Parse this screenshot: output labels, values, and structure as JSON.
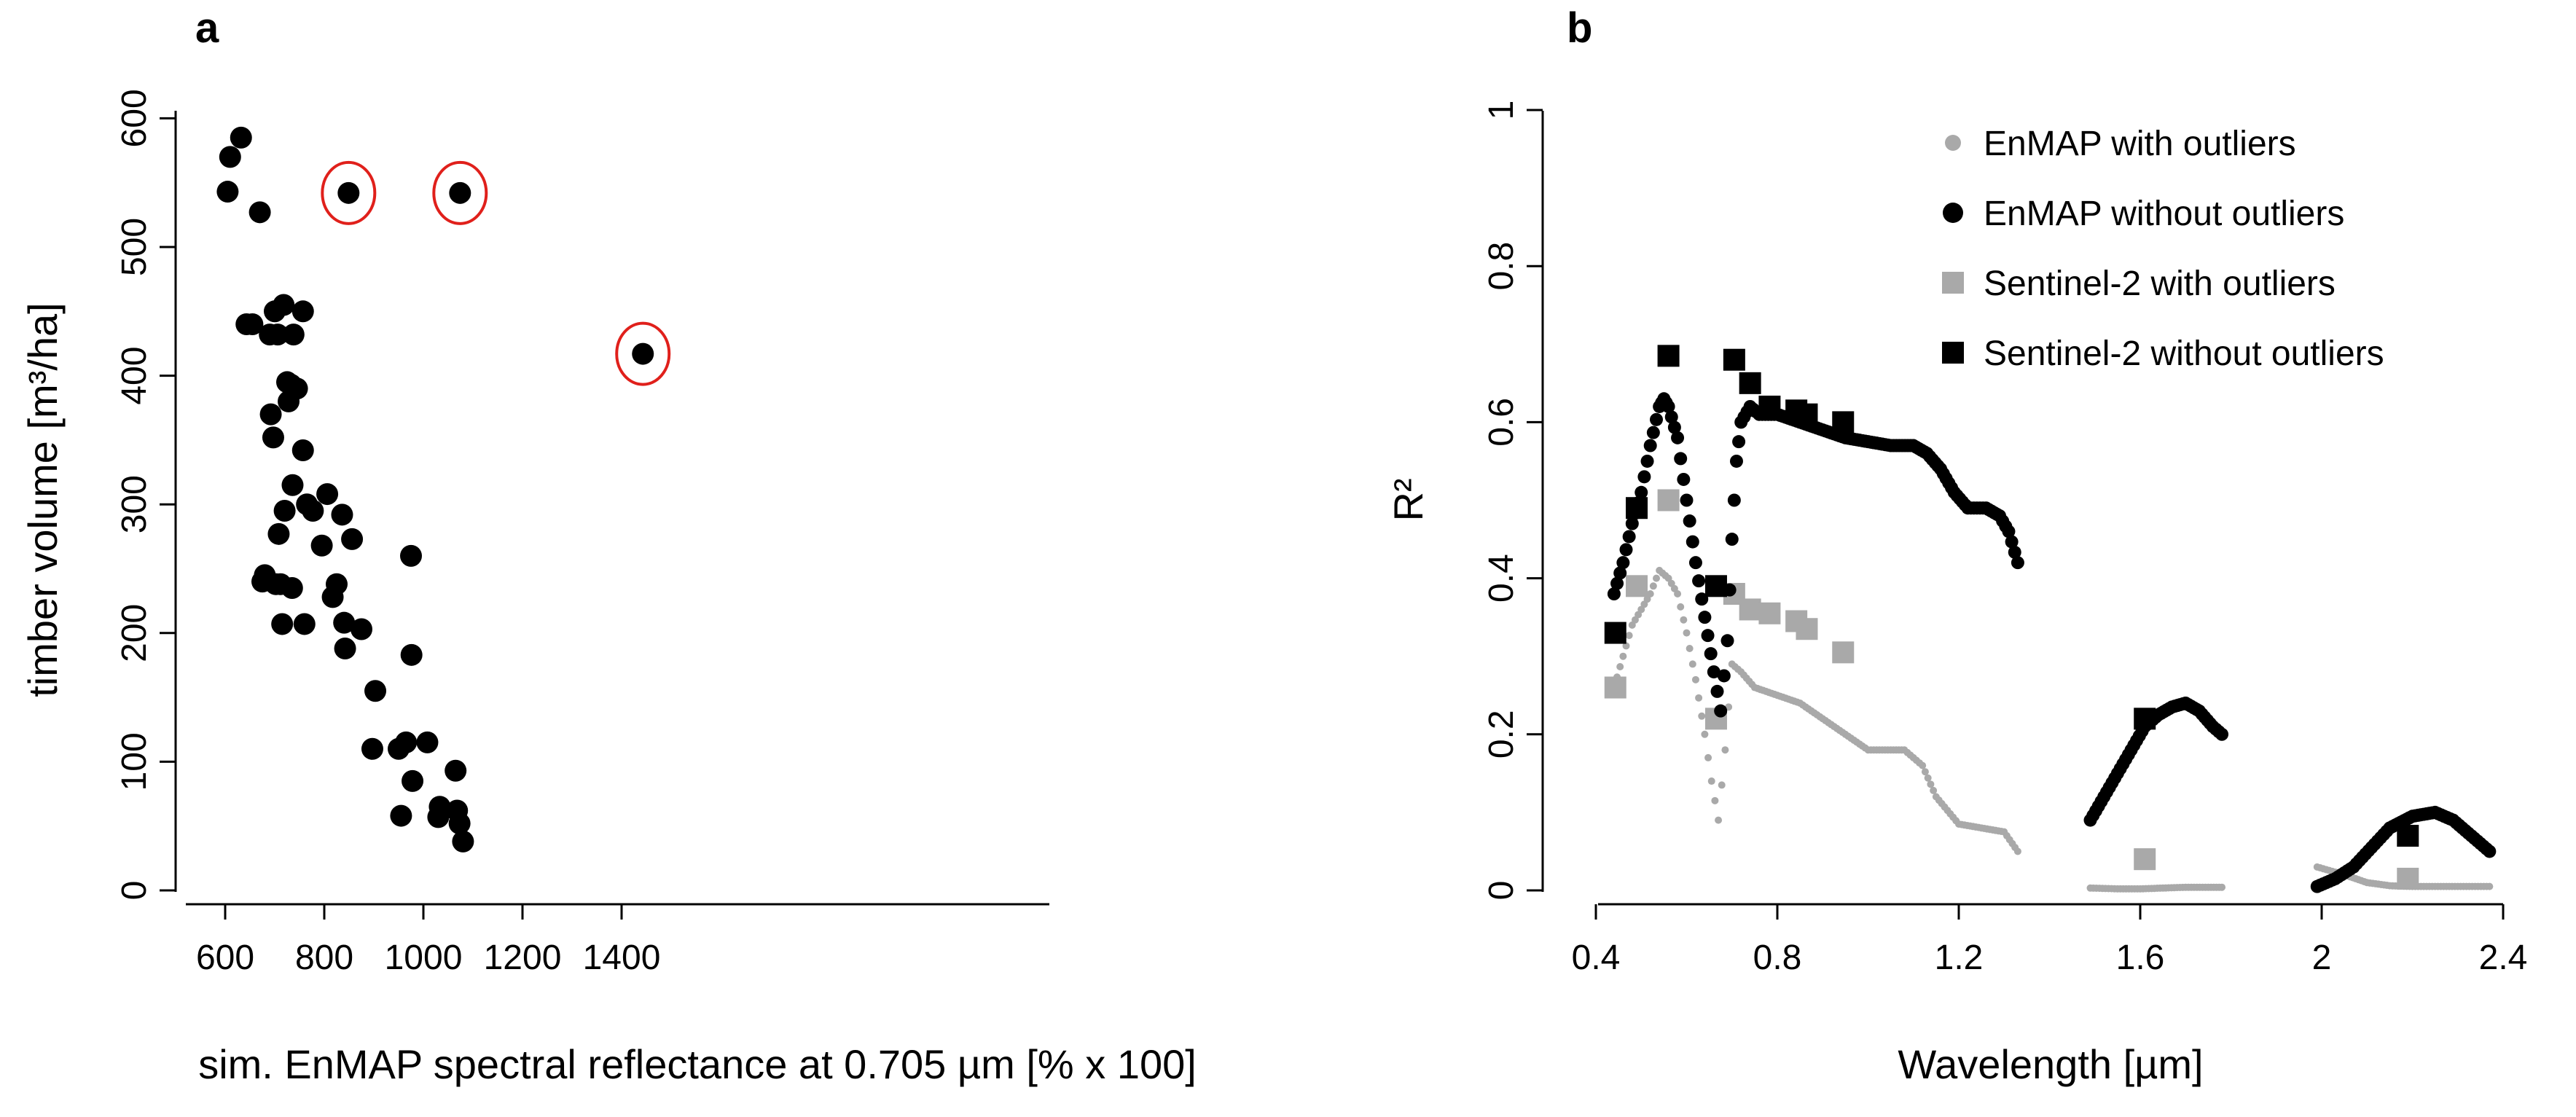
{
  "chart_data": [
    {
      "panel": "a",
      "type": "scatter",
      "xlabel": "sim. EnMAP spectral reflectance at 0.705 µm [% x 100]",
      "ylabel": "timber volume [m³/ha]",
      "xlim": [
        600,
        1450
      ],
      "ylim": [
        0,
        600
      ],
      "xticks": [
        "600",
        "800",
        "1000",
        "1200",
        "1400"
      ],
      "yticks": [
        "0",
        "100",
        "200",
        "300",
        "400",
        "500",
        "600"
      ],
      "grid": false,
      "point_color": "#000000",
      "outlier_ring_color": "#e0201b",
      "points": [
        [
          605,
          543
        ],
        [
          610,
          570
        ],
        [
          632,
          585
        ],
        [
          643,
          440
        ],
        [
          655,
          440
        ],
        [
          670,
          527
        ],
        [
          675,
          240
        ],
        [
          680,
          245
        ],
        [
          690,
          432
        ],
        [
          692,
          370
        ],
        [
          697,
          352
        ],
        [
          700,
          450
        ],
        [
          702,
          238
        ],
        [
          706,
          432
        ],
        [
          708,
          277
        ],
        [
          712,
          238
        ],
        [
          715,
          207
        ],
        [
          718,
          455
        ],
        [
          720,
          295
        ],
        [
          725,
          395
        ],
        [
          728,
          380
        ],
        [
          733,
          393
        ],
        [
          735,
          235
        ],
        [
          736,
          315
        ],
        [
          738,
          432
        ],
        [
          745,
          390
        ],
        [
          757,
          450
        ],
        [
          757,
          342
        ],
        [
          760,
          207
        ],
        [
          765,
          300
        ],
        [
          777,
          295
        ],
        [
          795,
          268
        ],
        [
          806,
          308
        ],
        [
          817,
          228
        ],
        [
          825,
          238
        ],
        [
          836,
          292
        ],
        [
          840,
          208
        ],
        [
          842,
          188
        ],
        [
          856,
          273
        ],
        [
          875,
          203
        ],
        [
          897,
          110
        ],
        [
          903,
          155
        ],
        [
          950,
          110
        ],
        [
          955,
          58
        ],
        [
          965,
          115
        ],
        [
          975,
          260
        ],
        [
          976,
          183
        ],
        [
          978,
          85
        ],
        [
          1008,
          115
        ],
        [
          1030,
          57
        ],
        [
          1033,
          65
        ],
        [
          1065,
          93
        ],
        [
          1068,
          62
        ],
        [
          1073,
          52
        ],
        [
          1080,
          38
        ]
      ],
      "outliers": [
        [
          849,
          542
        ],
        [
          1074,
          542
        ],
        [
          1443,
          417
        ]
      ]
    },
    {
      "panel": "b",
      "type": "scatter",
      "xlabel": "Wavelength [µm]",
      "ylabel": "R²",
      "xlim": [
        0.4,
        2.4
      ],
      "ylim": [
        0,
        1
      ],
      "xticks": [
        "0.4",
        "0.8",
        "1.2",
        "1.6",
        "2",
        "2.4"
      ],
      "yticks": [
        "0",
        "0.2",
        "0.4",
        "0.6",
        "0.8",
        "1"
      ],
      "grid": false,
      "legend_position": "top-right",
      "series": [
        {
          "name": "EnMAP with outliers",
          "marker": "small-circle",
          "color": "#a9a9a9",
          "segments": [
            [
              [
                0.44,
                0.26
              ],
              [
                0.46,
                0.3
              ],
              [
                0.48,
                0.34
              ],
              [
                0.5,
                0.36
              ],
              [
                0.52,
                0.38
              ],
              [
                0.54,
                0.41
              ],
              [
                0.56,
                0.4
              ],
              [
                0.58,
                0.38
              ],
              [
                0.6,
                0.33
              ],
              [
                0.62,
                0.27
              ],
              [
                0.64,
                0.2
              ],
              [
                0.655,
                0.14
              ],
              [
                0.67,
                0.09
              ],
              [
                0.685,
                0.18
              ],
              [
                0.7,
                0.29
              ],
              [
                0.72,
                0.28
              ],
              [
                0.75,
                0.26
              ],
              [
                0.8,
                0.25
              ],
              [
                0.85,
                0.24
              ],
              [
                0.9,
                0.22
              ],
              [
                0.95,
                0.2
              ],
              [
                1.0,
                0.18
              ],
              [
                1.05,
                0.18
              ],
              [
                1.08,
                0.18
              ],
              [
                1.12,
                0.16
              ],
              [
                1.15,
                0.12
              ],
              [
                1.2,
                0.085
              ],
              [
                1.25,
                0.08
              ],
              [
                1.3,
                0.075
              ],
              [
                1.33,
                0.05
              ]
            ],
            [
              [
                1.49,
                0.003
              ],
              [
                1.55,
                0.002
              ],
              [
                1.6,
                0.002
              ],
              [
                1.65,
                0.003
              ],
              [
                1.7,
                0.004
              ],
              [
                1.75,
                0.004
              ],
              [
                1.78,
                0.004
              ]
            ],
            [
              [
                1.99,
                0.03
              ],
              [
                2.05,
                0.02
              ],
              [
                2.1,
                0.01
              ],
              [
                2.15,
                0.006
              ],
              [
                2.2,
                0.005
              ],
              [
                2.25,
                0.005
              ],
              [
                2.3,
                0.005
              ],
              [
                2.37,
                0.005
              ]
            ]
          ]
        },
        {
          "name": "EnMAP without outliers",
          "marker": "circle",
          "color": "#000000",
          "segments": [
            [
              [
                0.44,
                0.38
              ],
              [
                0.46,
                0.42
              ],
              [
                0.48,
                0.47
              ],
              [
                0.5,
                0.51
              ],
              [
                0.52,
                0.57
              ],
              [
                0.54,
                0.62
              ],
              [
                0.55,
                0.63
              ],
              [
                0.56,
                0.62
              ],
              [
                0.58,
                0.58
              ],
              [
                0.6,
                0.5
              ],
              [
                0.62,
                0.42
              ],
              [
                0.64,
                0.35
              ],
              [
                0.66,
                0.28
              ],
              [
                0.675,
                0.23
              ],
              [
                0.69,
                0.32
              ],
              [
                0.7,
                0.45
              ],
              [
                0.71,
                0.55
              ],
              [
                0.72,
                0.6
              ],
              [
                0.74,
                0.62
              ],
              [
                0.76,
                0.61
              ],
              [
                0.8,
                0.61
              ],
              [
                0.85,
                0.6
              ],
              [
                0.9,
                0.59
              ],
              [
                0.95,
                0.58
              ],
              [
                1.0,
                0.575
              ],
              [
                1.05,
                0.57
              ],
              [
                1.1,
                0.57
              ],
              [
                1.13,
                0.56
              ],
              [
                1.16,
                0.54
              ],
              [
                1.19,
                0.51
              ],
              [
                1.22,
                0.49
              ],
              [
                1.26,
                0.49
              ],
              [
                1.29,
                0.48
              ],
              [
                1.31,
                0.46
              ],
              [
                1.33,
                0.42
              ]
            ],
            [
              [
                1.49,
                0.09
              ],
              [
                1.52,
                0.12
              ],
              [
                1.55,
                0.15
              ],
              [
                1.58,
                0.18
              ],
              [
                1.61,
                0.21
              ],
              [
                1.64,
                0.225
              ],
              [
                1.67,
                0.235
              ],
              [
                1.7,
                0.24
              ],
              [
                1.73,
                0.23
              ],
              [
                1.76,
                0.21
              ],
              [
                1.78,
                0.2
              ]
            ],
            [
              [
                1.99,
                0.005
              ],
              [
                2.03,
                0.015
              ],
              [
                2.07,
                0.03
              ],
              [
                2.11,
                0.055
              ],
              [
                2.15,
                0.08
              ],
              [
                2.2,
                0.095
              ],
              [
                2.25,
                0.1
              ],
              [
                2.29,
                0.09
              ],
              [
                2.33,
                0.07
              ],
              [
                2.37,
                0.05
              ]
            ]
          ]
        },
        {
          "name": "Sentinel-2 with outliers",
          "marker": "square",
          "color": "#a9a9a9",
          "points": [
            [
              0.443,
              0.26
            ],
            [
              0.49,
              0.39
            ],
            [
              0.56,
              0.5
            ],
            [
              0.665,
              0.22
            ],
            [
              0.705,
              0.38
            ],
            [
              0.74,
              0.36
            ],
            [
              0.783,
              0.355
            ],
            [
              0.842,
              0.345
            ],
            [
              0.865,
              0.335
            ],
            [
              0.945,
              0.305
            ],
            [
              1.61,
              0.04
            ],
            [
              2.19,
              0.015
            ]
          ]
        },
        {
          "name": "Sentinel-2 without outliers",
          "marker": "square",
          "color": "#000000",
          "points": [
            [
              0.443,
              0.33
            ],
            [
              0.49,
              0.49
            ],
            [
              0.56,
              0.685
            ],
            [
              0.665,
              0.39
            ],
            [
              0.705,
              0.68
            ],
            [
              0.74,
              0.65
            ],
            [
              0.783,
              0.62
            ],
            [
              0.842,
              0.615
            ],
            [
              0.865,
              0.61
            ],
            [
              0.945,
              0.6
            ],
            [
              1.61,
              0.22
            ],
            [
              2.19,
              0.07
            ]
          ]
        }
      ]
    }
  ]
}
